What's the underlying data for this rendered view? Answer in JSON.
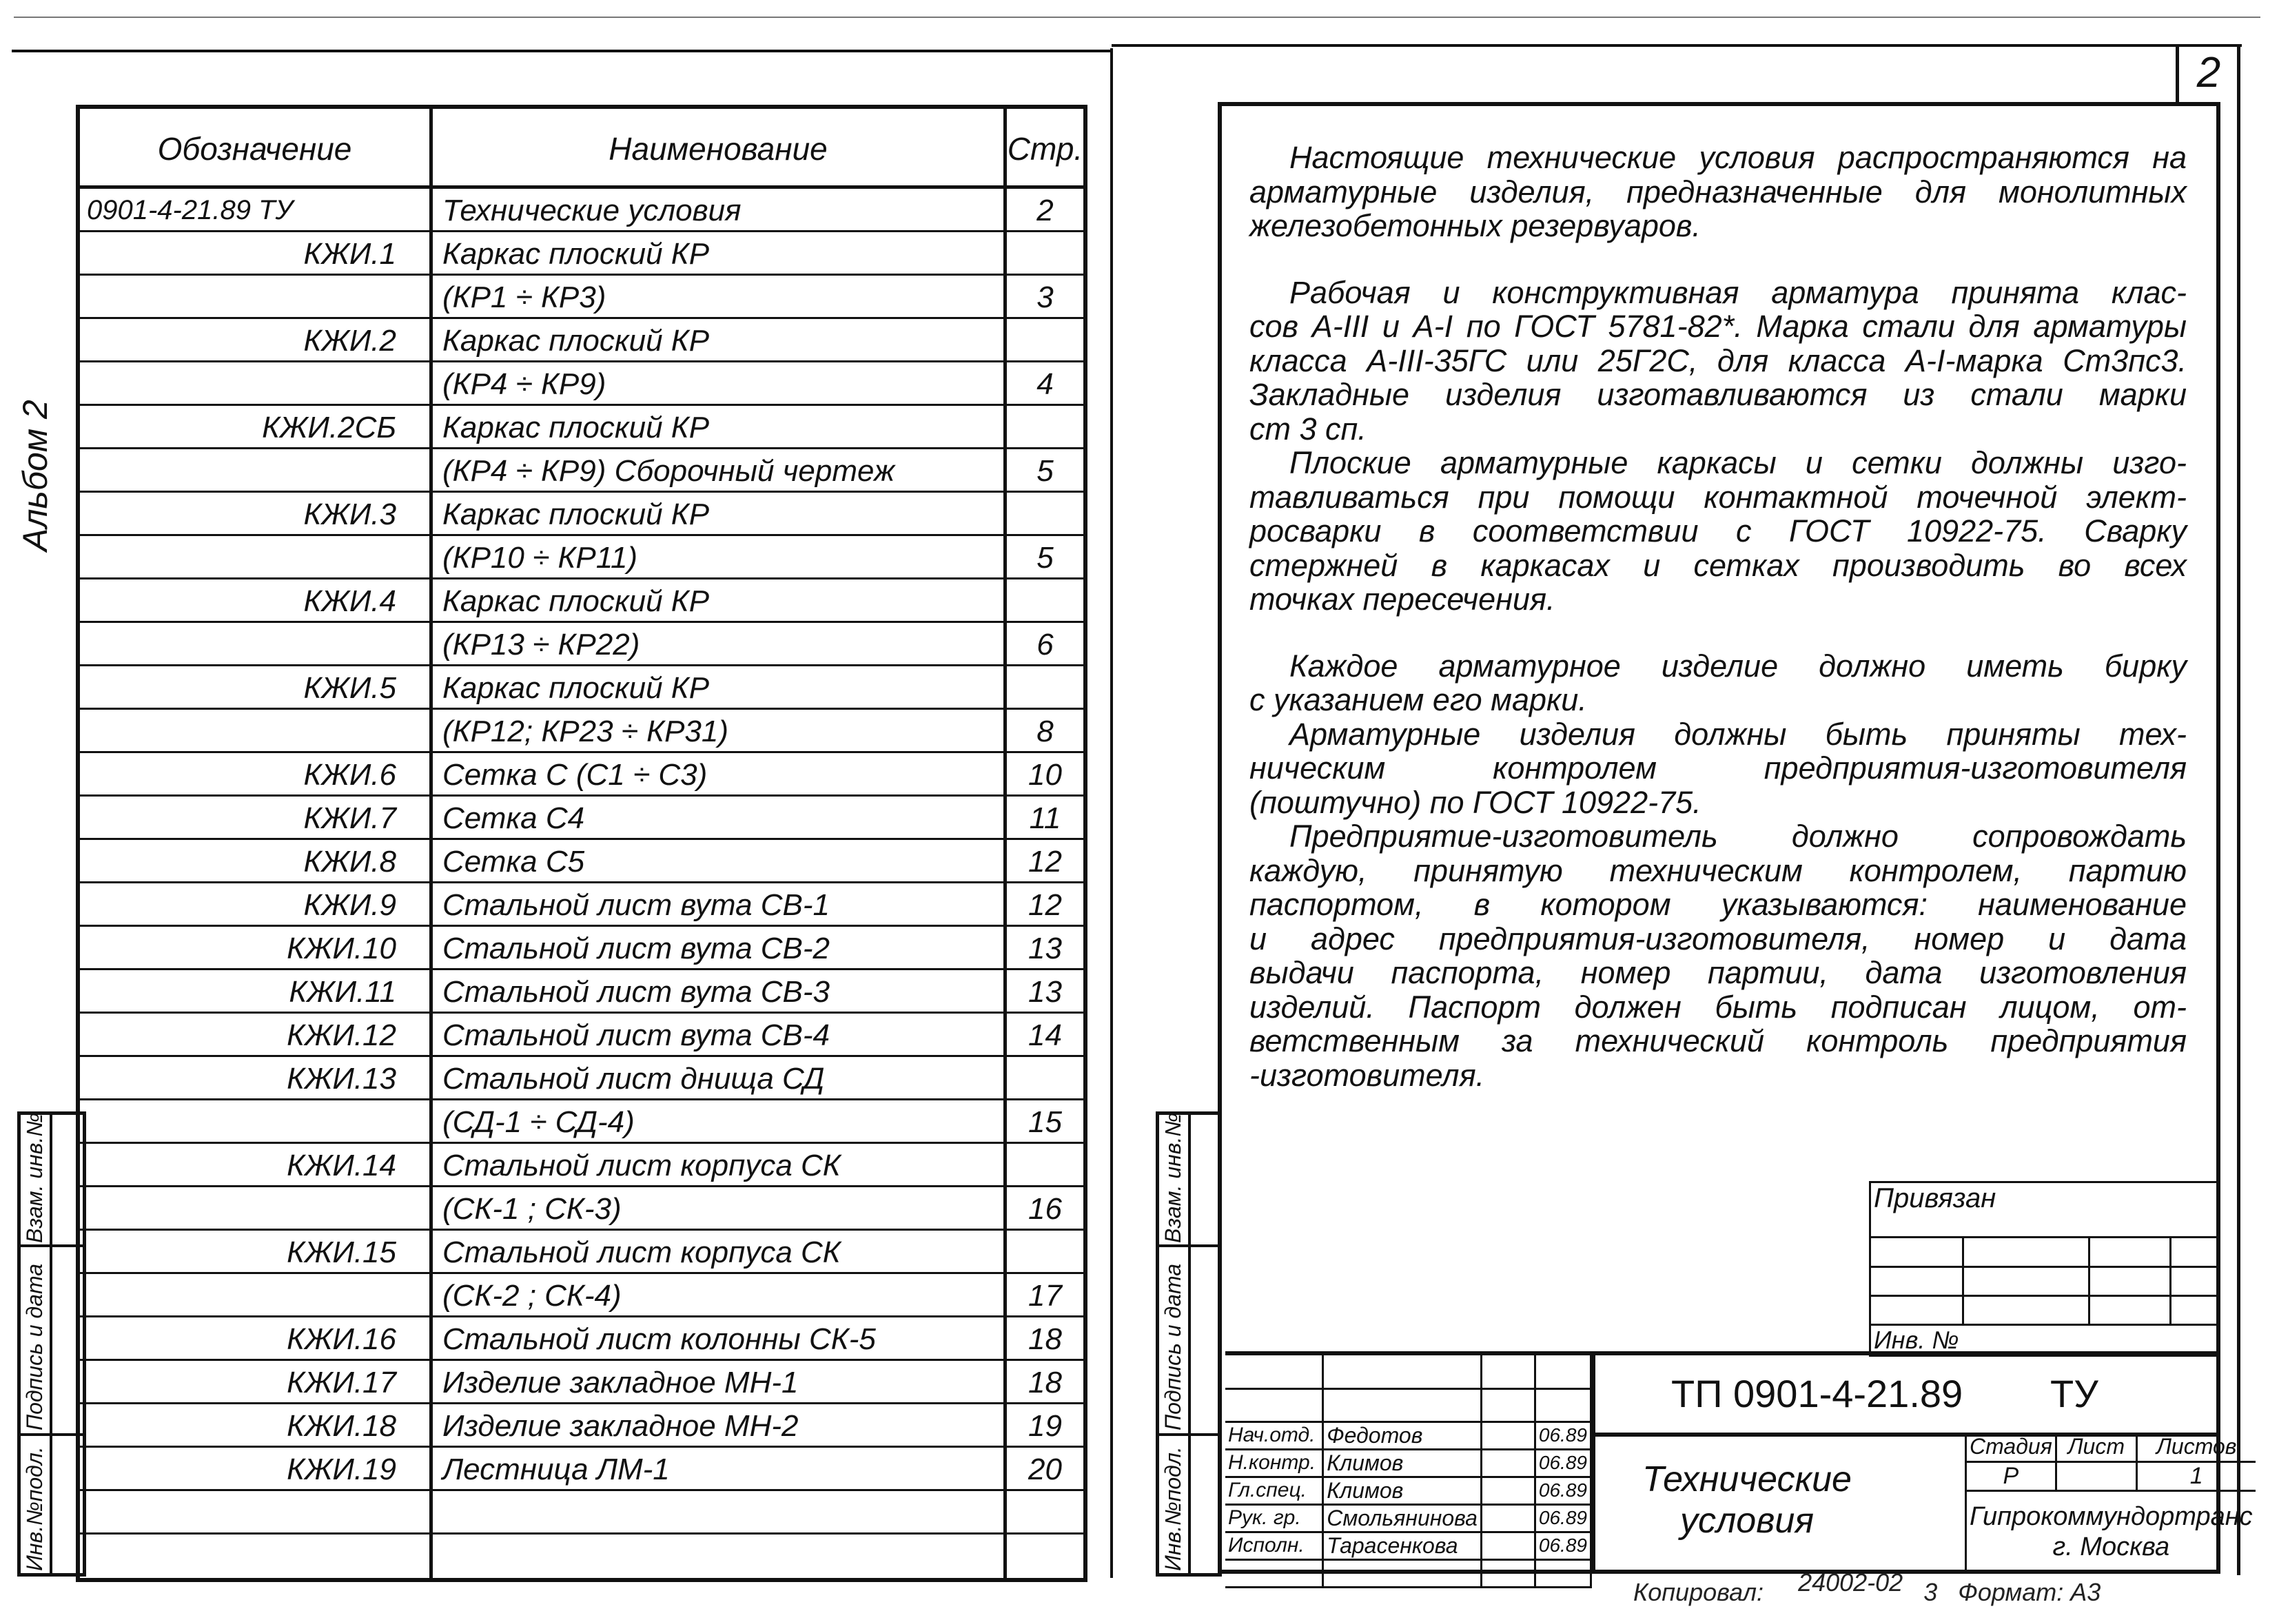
{
  "page_number": "2",
  "album_label": "Альбом 2",
  "side_stamps": [
    "Взам. инв.№",
    "Подпись и дата",
    "Инв.№подл."
  ],
  "contents_table": {
    "headers": [
      "Обозначение",
      "Наименование",
      "Стр."
    ],
    "rows": [
      [
        "0901-4-21.89  ТУ",
        "Технические  условия",
        "2"
      ],
      [
        "КЖИ.1",
        "Каркас  плоский   КР",
        ""
      ],
      [
        "",
        "(КР1 ÷ КР3)",
        "3"
      ],
      [
        "КЖИ.2",
        "Каркас  плоский   КР",
        ""
      ],
      [
        "",
        "(КР4 ÷ КР9)",
        "4"
      ],
      [
        "КЖИ.2СБ",
        "Каркас  плоский   КР",
        ""
      ],
      [
        "",
        "(КР4 ÷ КР9) Сборочный  чертеж",
        "5"
      ],
      [
        "КЖИ.3",
        "Каркас  плоский   КР",
        ""
      ],
      [
        "",
        "(КР10 ÷ КР11)",
        "5"
      ],
      [
        "КЖИ.4",
        "Каркас  плоский   КР",
        ""
      ],
      [
        "",
        "(КР13 ÷ КР22)",
        "6"
      ],
      [
        "КЖИ.5",
        "Каркас  плоский   КР",
        ""
      ],
      [
        "",
        "(КР12;  КР23 ÷ КР31)",
        "8"
      ],
      [
        "КЖИ.6",
        "Сетка  С  (С1 ÷ С3)",
        "10"
      ],
      [
        "КЖИ.7",
        "Сетка  С4",
        "11"
      ],
      [
        "КЖИ.8",
        "Сетка  С5",
        "12"
      ],
      [
        "КЖИ.9",
        "Стальной лист  вута   СВ-1",
        "12"
      ],
      [
        "КЖИ.10",
        "Стальной лист  вута   СВ-2",
        "13"
      ],
      [
        "КЖИ.11",
        "Стальной лист  вута   СВ-3",
        "13"
      ],
      [
        "КЖИ.12",
        "Стальной лист  вута   СВ-4",
        "14"
      ],
      [
        "КЖИ.13",
        "Стальной лист  днища   СД",
        ""
      ],
      [
        "",
        "(СД-1 ÷ СД-4)",
        "15"
      ],
      [
        "КЖИ.14",
        "Стальной лист  корпуса   СК",
        ""
      ],
      [
        "",
        "(СК-1 ;  СК-3)",
        "16"
      ],
      [
        "КЖИ.15",
        "Стальной лист  корпуса   СК",
        ""
      ],
      [
        "",
        "(СК-2 ;  СК-4)",
        "17"
      ],
      [
        "КЖИ.16",
        "Стальной лист  колонны   СК-5",
        "18"
      ],
      [
        "КЖИ.17",
        "Изделие  закладное   МН-1",
        "18"
      ],
      [
        "КЖИ.18",
        "Изделие  закладное   МН-2",
        "19"
      ],
      [
        "КЖИ.19",
        "Лестница   ЛМ-1",
        "20"
      ],
      [
        "",
        "",
        ""
      ],
      [
        "",
        "",
        ""
      ]
    ]
  },
  "conditions_text": [
    [
      "Настоящие технические условия распространяются на",
      "арматурные изделия, предназначенные для монолитных",
      "железобетонных резервуаров."
    ],
    [
      "Рабочая и конструктивная арматура принята клас-",
      "сов А-III и А-I по ГОСТ 5781-82*. Марка стали для арматуры",
      "класса А-III-35ГС или 25Г2С, для класса А-I-марка Ст3пс3.",
      "Закладные изделия изготавливаются из стали марки",
      "ст 3 сп."
    ],
    [
      "Плоские арматурные каркасы и сетки должны изго-",
      "тавливаться при помощи контактной точечной элект-",
      "росварки в соответствии с ГОСТ 10922-75. Сварку",
      "стержней в каркасах и сетках производить во всех",
      "точках пересечения."
    ],
    [
      "Каждое арматурное изделие должно иметь бирку",
      "с указанием его марки."
    ],
    [
      "Арматурные изделия должны быть приняты тех-",
      "ническим контролем предприятия-изготовителя",
      "(поштучно) по ГОСТ 10922-75."
    ],
    [
      "Предприятие-изготовитель должно сопровождать",
      "каждую, принятую техническим контролем, партию",
      "паспортом, в котором указываются: наименование",
      "и адрес предприятия-изготовителя, номер и дата",
      "выдачи паспорта, номер партии, дата изготовления",
      "изделий. Паспорт должен быть подписан лицом, от-",
      "ветственным за технический контроль предприятия",
      "-изготовителя."
    ]
  ],
  "binding_block": {
    "title": "Привязан",
    "inv_label": "Инв. №"
  },
  "title_block": {
    "signers": [
      {
        "role": "Нач.отд.",
        "name": "Федотов",
        "date": "06.89"
      },
      {
        "role": "Н.контр.",
        "name": "Климов",
        "date": "06.89"
      },
      {
        "role": "Гл.спец.",
        "name": "Климов",
        "date": "06.89"
      },
      {
        "role": "Рук. гр.",
        "name": "Смольянинова",
        "date": "06.89"
      },
      {
        "role": "Исполн.",
        "name": "Тарасенкова",
        "date": "06.89"
      }
    ],
    "doc_code": "ТП 0901-4-21.89",
    "doc_suffix": "ТУ",
    "doc_title": "Технические условия",
    "stage_label": "Стадия",
    "sheet_label": "Лист",
    "sheets_label": "Листов",
    "stage": "Р",
    "sheet": "",
    "sheets": "1",
    "organization": "Гипрокоммундортранс",
    "city": "г. Москва"
  },
  "footer": {
    "copied": "Копировал:",
    "order": "24002-02",
    "number": "3",
    "format": "Формат: А3"
  }
}
